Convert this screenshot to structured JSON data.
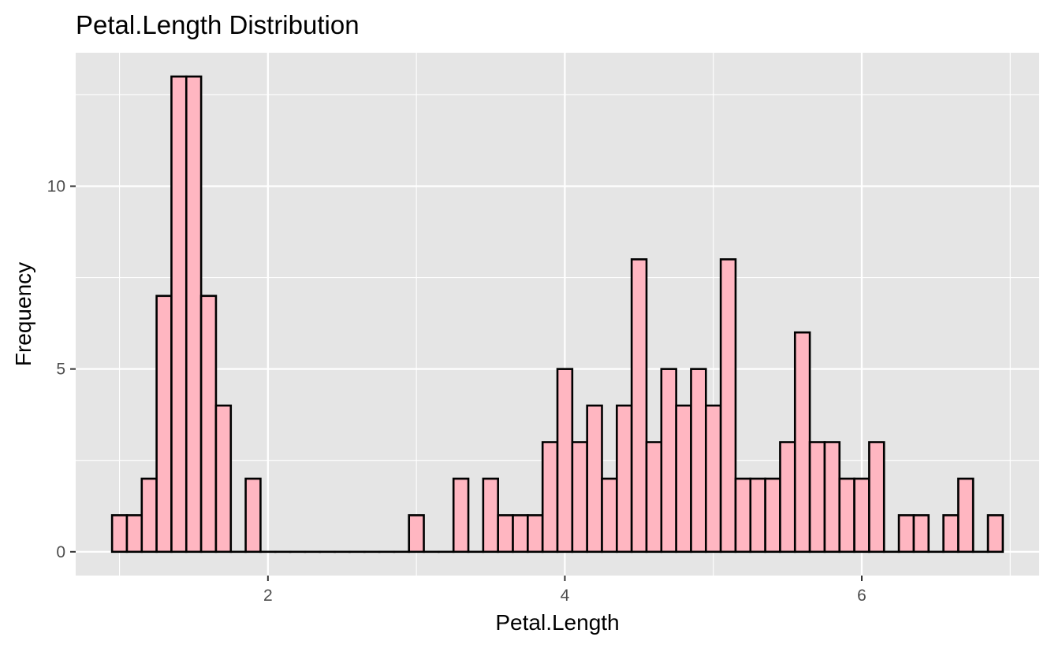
{
  "chart_data": {
    "type": "bar",
    "title": "Petal.Length Distribution",
    "xlabel": "Petal.Length",
    "ylabel": "Frequency",
    "bin_width": 0.1,
    "bins": [
      {
        "x": 1.0,
        "count": 1
      },
      {
        "x": 1.1,
        "count": 1
      },
      {
        "x": 1.2,
        "count": 2
      },
      {
        "x": 1.3,
        "count": 7
      },
      {
        "x": 1.4,
        "count": 13
      },
      {
        "x": 1.5,
        "count": 13
      },
      {
        "x": 1.6,
        "count": 7
      },
      {
        "x": 1.7,
        "count": 4
      },
      {
        "x": 1.8,
        "count": 0
      },
      {
        "x": 1.9,
        "count": 2
      },
      {
        "x": 2.0,
        "count": 0
      },
      {
        "x": 2.1,
        "count": 0
      },
      {
        "x": 2.2,
        "count": 0
      },
      {
        "x": 2.3,
        "count": 0
      },
      {
        "x": 2.4,
        "count": 0
      },
      {
        "x": 2.5,
        "count": 0
      },
      {
        "x": 2.6,
        "count": 0
      },
      {
        "x": 2.7,
        "count": 0
      },
      {
        "x": 2.8,
        "count": 0
      },
      {
        "x": 2.9,
        "count": 0
      },
      {
        "x": 3.0,
        "count": 1
      },
      {
        "x": 3.1,
        "count": 0
      },
      {
        "x": 3.2,
        "count": 0
      },
      {
        "x": 3.3,
        "count": 2
      },
      {
        "x": 3.4,
        "count": 0
      },
      {
        "x": 3.5,
        "count": 2
      },
      {
        "x": 3.6,
        "count": 1
      },
      {
        "x": 3.7,
        "count": 1
      },
      {
        "x": 3.8,
        "count": 1
      },
      {
        "x": 3.9,
        "count": 3
      },
      {
        "x": 4.0,
        "count": 5
      },
      {
        "x": 4.1,
        "count": 3
      },
      {
        "x": 4.2,
        "count": 4
      },
      {
        "x": 4.3,
        "count": 2
      },
      {
        "x": 4.4,
        "count": 4
      },
      {
        "x": 4.5,
        "count": 8
      },
      {
        "x": 4.6,
        "count": 3
      },
      {
        "x": 4.7,
        "count": 5
      },
      {
        "x": 4.8,
        "count": 4
      },
      {
        "x": 4.9,
        "count": 5
      },
      {
        "x": 5.0,
        "count": 4
      },
      {
        "x": 5.1,
        "count": 8
      },
      {
        "x": 5.2,
        "count": 2
      },
      {
        "x": 5.3,
        "count": 2
      },
      {
        "x": 5.4,
        "count": 2
      },
      {
        "x": 5.5,
        "count": 3
      },
      {
        "x": 5.6,
        "count": 6
      },
      {
        "x": 5.7,
        "count": 3
      },
      {
        "x": 5.8,
        "count": 3
      },
      {
        "x": 5.9,
        "count": 2
      },
      {
        "x": 6.0,
        "count": 2
      },
      {
        "x": 6.1,
        "count": 3
      },
      {
        "x": 6.2,
        "count": 0
      },
      {
        "x": 6.3,
        "count": 1
      },
      {
        "x": 6.4,
        "count": 1
      },
      {
        "x": 6.5,
        "count": 0
      },
      {
        "x": 6.6,
        "count": 1
      },
      {
        "x": 6.7,
        "count": 2
      },
      {
        "x": 6.8,
        "count": 0
      },
      {
        "x": 6.9,
        "count": 1
      }
    ],
    "xlim": [
      0.705,
      7.195
    ],
    "ylim": [
      -0.65,
      13.65
    ],
    "x_ticks": [
      2,
      4,
      6
    ],
    "x_tick_labels": [
      "2",
      "4",
      "6"
    ],
    "x_minor_ticks": [
      1,
      3,
      5,
      7
    ],
    "y_ticks": [
      0,
      5,
      10
    ],
    "y_tick_labels": [
      "0",
      "5",
      "10"
    ],
    "y_minor_ticks": [
      2.5,
      7.5,
      12.5
    ],
    "grid": true,
    "legend": "none",
    "colors": {
      "bar_fill": "#FFB6C1",
      "bar_outline": "#000000",
      "panel_background": "#E5E5E5",
      "grid_line": "#FFFFFF",
      "tick_label": "#4D4D4D"
    }
  }
}
